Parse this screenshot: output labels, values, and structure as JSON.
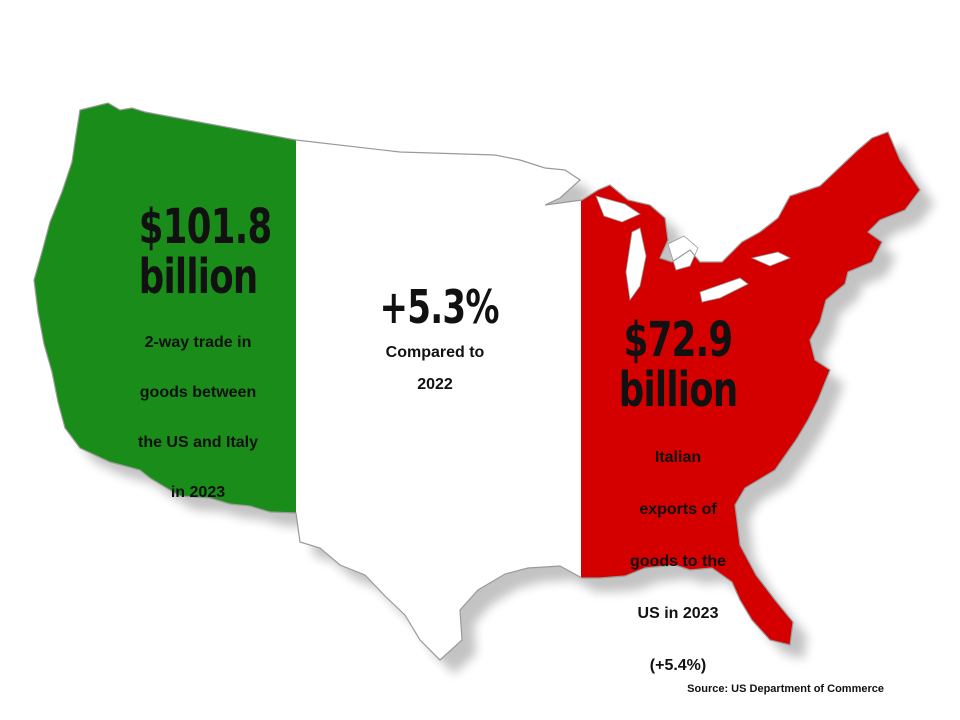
{
  "colors": {
    "italy_green": "#1a8c1a",
    "italy_white": "#ffffff",
    "italy_red": "#d40000",
    "outline": "#9a9a9a",
    "text": "#111111"
  },
  "map": {
    "region": "contiguous-united-states",
    "fill_pattern": "italian-flag-tricolor"
  },
  "stats": {
    "left": {
      "value": "$101.8",
      "unit": "billion",
      "caption_lines": [
        "2-way trade in",
        "goods between",
        "the US and Italy",
        "in 2023"
      ]
    },
    "middle": {
      "value": "+5.3%",
      "caption_lines": [
        "Compared to",
        "2022"
      ]
    },
    "right": {
      "value": "$72.9",
      "unit": "billion",
      "caption_lines": [
        "Italian",
        "exports of",
        "goods to the",
        "US in 2023",
        "(+5.4%)"
      ]
    }
  },
  "source": "Source: US Department of Commerce"
}
